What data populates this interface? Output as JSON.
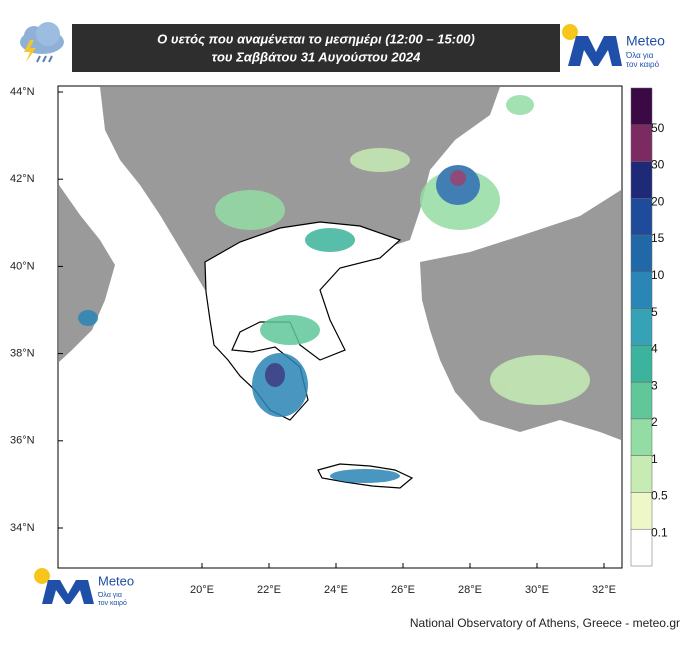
{
  "header": {
    "title_line1": "Ο υετός που αναμένεται το μεσημέρι (12:00 – 15:00)",
    "title_line2": "του Σαββάτου 31 Αυγούστου 2024"
  },
  "logo": {
    "name": "Meteo",
    "tagline_1": "Όλα για",
    "tagline_2": "τον καιρό"
  },
  "map": {
    "lat_labels": [
      "44°N",
      "42°N",
      "40°N",
      "38°N",
      "36°N",
      "34°N"
    ],
    "lon_labels": [
      "20°E",
      "22°E",
      "24°E",
      "26°E",
      "28°E",
      "30°E",
      "32°E"
    ]
  },
  "colorbar": {
    "colors": [
      "#3b0a45",
      "#7b2b61",
      "#1e2a78",
      "#1f4c9a",
      "#2068a8",
      "#2a86b6",
      "#35a3b5",
      "#3cb39c",
      "#5fc79a",
      "#93dca4",
      "#c6ecb4",
      "#eef7c8",
      "#ffffff"
    ],
    "labels": [
      "50",
      "30",
      "20",
      "15",
      "10",
      "5",
      "4",
      "3",
      "2",
      "1",
      "0.5",
      "0.1"
    ]
  },
  "footer": "National Observatory of Athens, Greece - meteo.gr"
}
